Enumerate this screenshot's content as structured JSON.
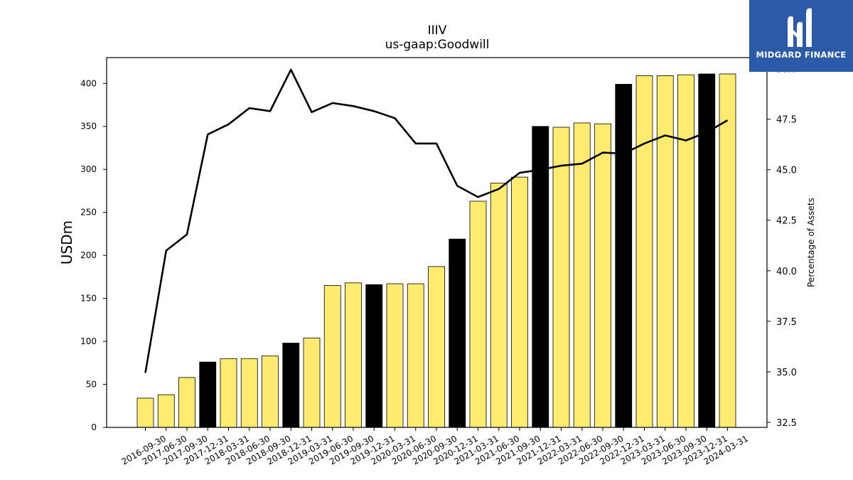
{
  "brand": {
    "name": "MIDGARD FINANCE",
    "logo_icon": "midgard-m-icon",
    "background_color": "#2b5aa8"
  },
  "chart_data": {
    "type": "bar",
    "title": "IIIV",
    "subtitle": "us-gaap:Goodwill",
    "ylabel": "USDm",
    "y2label": "Percentage of Assets",
    "ylim": [
      0,
      430
    ],
    "y2lim": [
      32.25,
      50.55
    ],
    "yticks": [
      0,
      50,
      100,
      150,
      200,
      250,
      300,
      350,
      400
    ],
    "y2ticks": [
      "32.5",
      "35.0",
      "37.5",
      "40.0",
      "42.5",
      "45.0",
      "47.5",
      "50.0"
    ],
    "grid": false,
    "categories": [
      "2016-09-30",
      "2017-06-30",
      "2017-09-30",
      "2017-12-31",
      "2018-03-31",
      "2018-06-30",
      "2018-09-30",
      "2018-12-31",
      "2019-03-31",
      "2019-06-30",
      "2019-09-30",
      "2019-12-31",
      "2020-03-31",
      "2020-06-30",
      "2020-09-30",
      "2020-12-31",
      "2021-03-31",
      "2021-06-30",
      "2021-09-30",
      "2021-12-31",
      "2022-03-31",
      "2022-06-30",
      "2022-09-30",
      "2022-12-31",
      "2023-03-31",
      "2023-06-30",
      "2023-09-30",
      "2023-12-31",
      "2024-03-31"
    ],
    "series": [
      {
        "type": "bar",
        "values": [
          34,
          38,
          58,
          76,
          80,
          80,
          83,
          98,
          104,
          165,
          168,
          166,
          167,
          167,
          187,
          219,
          263,
          284,
          291,
          350,
          349,
          354,
          353,
          399,
          409,
          409,
          410,
          411,
          411
        ],
        "fiscal_year_end_color": "#000000",
        "other_color": "#ffeb70"
      },
      {
        "type": "line",
        "axis": "right",
        "values": [
          34.95,
          41.0,
          41.8,
          46.75,
          47.25,
          48.05,
          47.9,
          49.95,
          47.85,
          48.3,
          48.15,
          47.9,
          47.55,
          46.3,
          46.3,
          44.2,
          43.65,
          44.05,
          44.85,
          45.0,
          45.2,
          45.3,
          45.85,
          45.8,
          46.3,
          46.7,
          46.45,
          46.85,
          47.45
        ],
        "color": "#000000"
      }
    ],
    "highlight_indices": [
      3,
      7,
      11,
      15,
      19,
      23,
      27
    ]
  }
}
